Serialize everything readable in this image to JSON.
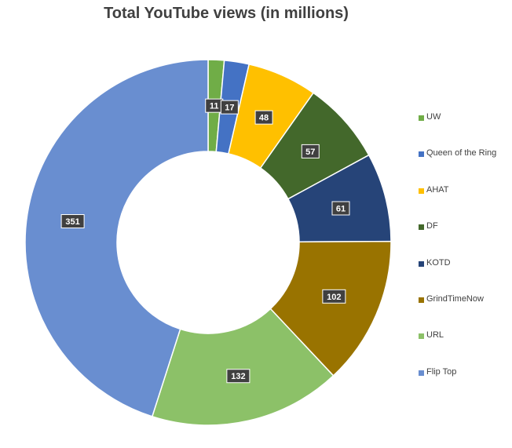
{
  "chart_data": {
    "type": "pie",
    "subtype": "donut",
    "title": "Total YouTube views (in millions)",
    "legend_position": "right",
    "categories": [
      "UW",
      "Queen of the Ring",
      "AHAT",
      "DF",
      "KOTD",
      "GrindTimeNow",
      "URL",
      "Flip Top"
    ],
    "values": [
      11,
      17,
      48,
      57,
      61,
      102,
      132,
      351
    ],
    "colors": [
      "#70AD47",
      "#4472C4",
      "#FFC000",
      "#43682B",
      "#264478",
      "#997300",
      "#8CC168",
      "#698ED0"
    ],
    "data_labels": [
      "11",
      "17",
      "48",
      "57",
      "61",
      "102",
      "132",
      "351"
    ]
  }
}
